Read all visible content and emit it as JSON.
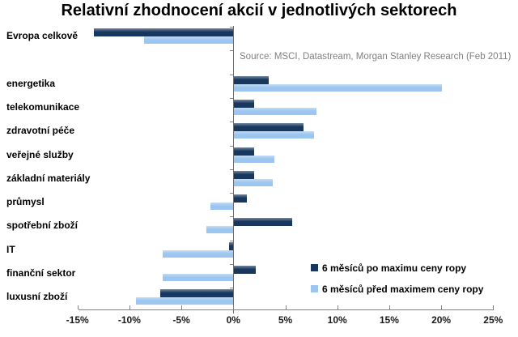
{
  "source_note": "Source: MSCI, Datastream, Morgan Stanley Research (Feb 2011)",
  "legend": [
    {
      "label": "6 měsíců po maximu ceny ropy",
      "color": "#17375E"
    },
    {
      "label": "6 měsíců před maximem ceny ropy",
      "color": "#9CC5F0"
    }
  ],
  "chart_data": {
    "type": "bar",
    "orientation": "horizontal",
    "title": "Relativní zhodnocení akcií v jednotlivých sektorech",
    "unit": "%",
    "xlim": [
      -15,
      25
    ],
    "grid": false,
    "legend_position": "inside-right-bottom",
    "blank_slot_after_first_category": true,
    "categories": [
      "Evropa celkově",
      "energetika",
      "telekomunikace",
      "zdravotní péče",
      "veřejné služby",
      "základní materiály",
      "průmysl",
      "spotřební zboží",
      "IT",
      "finanční sektor",
      "luxusní zboží"
    ],
    "series": [
      {
        "name": "6 měsíců po maximu ceny ropy",
        "color": "#17375E",
        "values": [
          -13.4,
          3.3,
          1.9,
          6.7,
          1.9,
          1.9,
          1.2,
          5.6,
          -0.4,
          2.1,
          -7.0
        ]
      },
      {
        "name": "6 měsíců před maximem ceny ropy",
        "color": "#9CC5F0",
        "values": [
          -8.6,
          20.0,
          7.9,
          7.7,
          3.9,
          3.7,
          -2.2,
          -2.6,
          -6.8,
          -6.8,
          -9.4
        ]
      }
    ],
    "x_ticks": [
      {
        "value": -15,
        "label": "-15%"
      },
      {
        "value": -10,
        "label": "-10%"
      },
      {
        "value": -5,
        "label": "-5%"
      },
      {
        "value": 0,
        "label": "0%"
      },
      {
        "value": 5,
        "label": "5%"
      },
      {
        "value": 10,
        "label": "10%"
      },
      {
        "value": 15,
        "label": "15%"
      },
      {
        "value": 20,
        "label": "20%"
      },
      {
        "value": 25,
        "label": "25%"
      }
    ]
  }
}
